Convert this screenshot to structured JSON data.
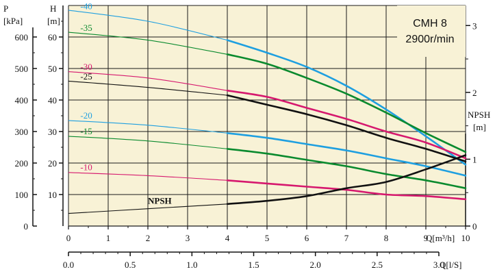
{
  "chart_data": {
    "type": "line",
    "title": "CMH 8",
    "subtitle": "2900r/min",
    "x_axis": {
      "label": "Q[m³/h]",
      "range": [
        0,
        10
      ],
      "ticks": [
        "0",
        "1",
        "2",
        "3",
        "4",
        "5",
        "6",
        "7",
        "8",
        "9",
        "10"
      ]
    },
    "x2_axis": {
      "label": "Q[l/S]",
      "range": [
        0,
        3.0
      ],
      "ticks": [
        "0.0",
        "0.5",
        "1.0",
        "1.5",
        "2.0",
        "2.5",
        "3.0"
      ]
    },
    "y_axis_h": {
      "label": "H",
      "unit": "[m]",
      "range": [
        0,
        70
      ],
      "ticks": [
        "10",
        "20",
        "30",
        "40",
        "50",
        "60"
      ]
    },
    "y_axis_p": {
      "label": "P",
      "unit": "[kPa]",
      "range": [
        0,
        700
      ],
      "ticks": [
        "0",
        "100",
        "200",
        "300",
        "400",
        "500",
        "600"
      ]
    },
    "y_axis_npsh": {
      "label": "NPSH",
      "unit": "[m]",
      "range": [
        0,
        3.3
      ],
      "ticks": [
        "0",
        "1",
        "2",
        "3"
      ]
    },
    "grid": true,
    "background": "#f8f2d6",
    "series": [
      {
        "name": "-40",
        "color": "#1e9fe0",
        "label_x": 0.3,
        "x": [
          0,
          2,
          4,
          5,
          6,
          7,
          8,
          9,
          10
        ],
        "values": [
          68.5,
          65,
          59,
          55,
          50.5,
          44.5,
          37,
          28.5,
          19.5
        ]
      },
      {
        "name": "-35",
        "color": "#0a8a2e",
        "label_x": 0.3,
        "x": [
          0,
          2,
          4,
          5,
          6,
          7,
          8,
          9,
          10
        ],
        "values": [
          61.5,
          59,
          54.5,
          51.5,
          47,
          42,
          36,
          29.5,
          23.5
        ]
      },
      {
        "name": "-30",
        "color": "#d6186e",
        "label_x": 0.3,
        "x": [
          0,
          2,
          4,
          5,
          6,
          7,
          8,
          9,
          10
        ],
        "values": [
          49,
          47,
          43,
          41,
          37.5,
          34,
          30,
          26.5,
          21.5
        ]
      },
      {
        "name": "-25",
        "color": "#111111",
        "label_x": 0.3,
        "x": [
          0,
          2,
          4,
          5,
          6,
          7,
          8,
          9,
          10
        ],
        "values": [
          46,
          44,
          41.5,
          38.5,
          35.5,
          32,
          28,
          24.5,
          20.5
        ]
      },
      {
        "name": "-20",
        "color": "#1e9fe0",
        "label_x": 0.3,
        "x": [
          0,
          2,
          4,
          5,
          6,
          7,
          8,
          9,
          10
        ],
        "values": [
          33.5,
          32,
          29.5,
          28,
          26,
          24,
          21.5,
          19,
          16
        ]
      },
      {
        "name": "-15",
        "color": "#0a8a2e",
        "label_x": 0.3,
        "x": [
          0,
          2,
          4,
          5,
          6,
          7,
          8,
          9,
          10
        ],
        "values": [
          28.5,
          27,
          24.5,
          23,
          21,
          19,
          16.5,
          14.5,
          12
        ]
      },
      {
        "name": "-10",
        "color": "#d6186e",
        "label_x": 0.3,
        "x": [
          0,
          2,
          4,
          5,
          6,
          7,
          8,
          9,
          10
        ],
        "values": [
          17,
          16,
          14.5,
          13.5,
          12.5,
          11.5,
          10,
          9.5,
          8.5
        ]
      },
      {
        "name": "NPSH",
        "color": "#111111",
        "label_x": 2.0,
        "x": [
          0,
          2,
          4,
          5,
          6,
          7,
          8,
          9,
          10
        ],
        "values": [
          4,
          5.5,
          7,
          8,
          9.5,
          12,
          14,
          18,
          22.5
        ]
      }
    ]
  }
}
